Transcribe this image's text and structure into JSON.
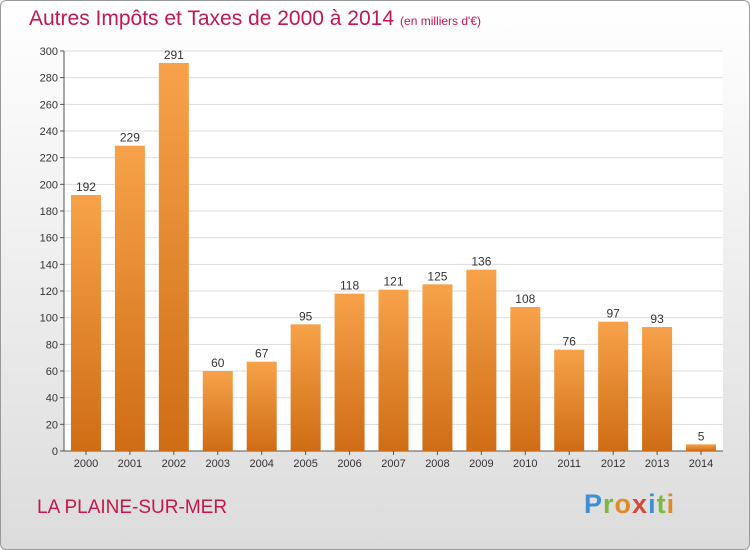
{
  "header": {
    "title": "Autres Impôts et Taxes de 2000 à 2014",
    "subtitle": "(en milliers d'€)"
  },
  "footer": {
    "location": "LA PLAINE-SUR-MER",
    "logo_letters": [
      "P",
      "r",
      "o",
      "x",
      "i",
      "t",
      "i"
    ]
  },
  "colors": {
    "title": "#c4174d",
    "bar_top": "#f7a24a",
    "bar_bottom": "#cf6d15",
    "grid": "#dddddd"
  },
  "chart_data": {
    "type": "bar",
    "categories": [
      "2000",
      "2001",
      "2002",
      "2003",
      "2004",
      "2005",
      "2006",
      "2007",
      "2008",
      "2009",
      "2010",
      "2011",
      "2012",
      "2013",
      "2014"
    ],
    "values": [
      192,
      229,
      291,
      60,
      67,
      95,
      118,
      121,
      125,
      136,
      108,
      76,
      97,
      93,
      5
    ],
    "ylim": [
      0,
      300
    ],
    "yticks": [
      0,
      20,
      40,
      60,
      80,
      100,
      120,
      140,
      160,
      180,
      200,
      220,
      240,
      260,
      280,
      300
    ],
    "grid": true,
    "data_labels": true
  }
}
